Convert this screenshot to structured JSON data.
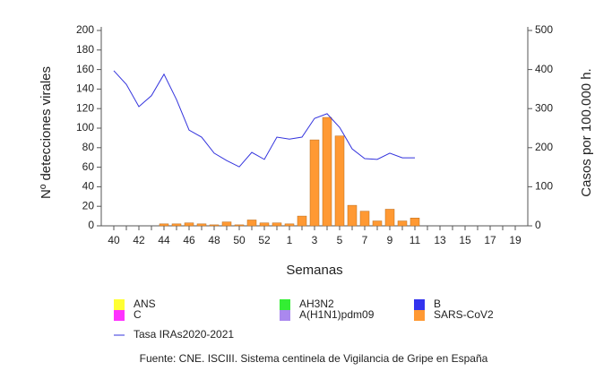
{
  "chart_data": {
    "type": "bar",
    "categories": [
      "40",
      null,
      "42",
      null,
      "44",
      null,
      "46",
      null,
      "48",
      null,
      "50",
      null,
      "52",
      null,
      "1",
      null,
      "3",
      null,
      "5",
      null,
      "7",
      null,
      "9",
      null,
      "11",
      null,
      "13",
      null,
      "15",
      null,
      "17",
      null,
      "19"
    ],
    "series": [
      {
        "name": "ANS",
        "color": "#ffff33",
        "values": [
          0,
          0,
          0,
          0,
          0,
          0,
          0,
          0,
          0,
          0,
          0,
          0,
          0,
          0,
          0,
          0,
          0,
          0,
          0,
          0,
          0,
          0,
          0,
          0,
          0,
          0,
          0,
          0,
          0,
          0,
          0,
          0,
          0
        ]
      },
      {
        "name": "AH3N2",
        "color": "#33ee33",
        "values": [
          0,
          0,
          0,
          0,
          0,
          0,
          0,
          0,
          0,
          0,
          0,
          0,
          0,
          0,
          0,
          0,
          0,
          0,
          0,
          0,
          0,
          0,
          0,
          0,
          0,
          0,
          0,
          0,
          0,
          0,
          0,
          0,
          0
        ]
      },
      {
        "name": "B",
        "color": "#3333ee",
        "values": [
          0,
          0,
          0,
          0,
          0,
          0,
          0,
          0,
          0,
          0,
          0,
          0,
          0,
          0,
          0,
          0,
          0,
          0,
          0,
          0,
          0,
          0,
          0,
          0,
          0,
          0,
          0,
          0,
          0,
          0,
          0,
          0,
          0
        ]
      },
      {
        "name": "C",
        "color": "#ff33ff",
        "values": [
          0,
          0,
          0,
          0,
          0,
          0,
          0,
          0,
          0,
          0,
          0,
          0,
          0,
          0,
          0,
          0,
          0,
          0,
          0,
          0,
          0,
          0,
          0,
          0,
          0,
          0,
          0,
          0,
          0,
          0,
          0,
          0,
          0
        ]
      },
      {
        "name": "A(H1N1)pdm09",
        "color": "#aa88ee",
        "values": [
          0,
          0,
          0,
          0,
          0,
          0,
          0,
          0,
          0,
          0,
          0,
          0,
          0,
          0,
          0,
          0,
          0,
          0,
          0,
          0,
          0,
          0,
          0,
          0,
          0,
          0,
          0,
          0,
          0,
          0,
          0,
          0,
          0
        ]
      },
      {
        "name": "SARS-CoV2",
        "color": "#ff9933",
        "values": [
          0,
          0,
          0,
          0,
          2,
          2,
          3,
          2,
          1,
          4,
          1,
          6,
          3,
          3,
          2,
          10,
          88,
          111,
          92,
          21,
          15,
          5,
          17,
          5,
          8,
          0,
          0,
          0,
          0,
          0,
          0,
          0,
          0
        ]
      },
      {
        "name": "Tasa IRAs2020-2021",
        "type": "line",
        "axis": "y2",
        "color": "#3333dd",
        "values": [
          397,
          362,
          305,
          333,
          388,
          323,
          245,
          227,
          186,
          167,
          151,
          188,
          170,
          227,
          222,
          227,
          275,
          287,
          252,
          197,
          172,
          170,
          186,
          174,
          174,
          null,
          null,
          null,
          null,
          null,
          null,
          null,
          null
        ]
      }
    ],
    "xlabel": "Semanas",
    "ylabel": "Nº detecciones virales",
    "y2label": "Casos por 100.000 h.",
    "ylim": [
      0,
      200
    ],
    "yticks": [
      0,
      20,
      40,
      60,
      80,
      100,
      120,
      140,
      160,
      180,
      200
    ],
    "y2lim": [
      0,
      500
    ],
    "y2ticks": [
      0,
      100,
      200,
      300,
      400,
      500
    ],
    "source": "Fuente: CNE. ISCIII. Sistema centinela de Vigilancia de Gripe en España"
  }
}
